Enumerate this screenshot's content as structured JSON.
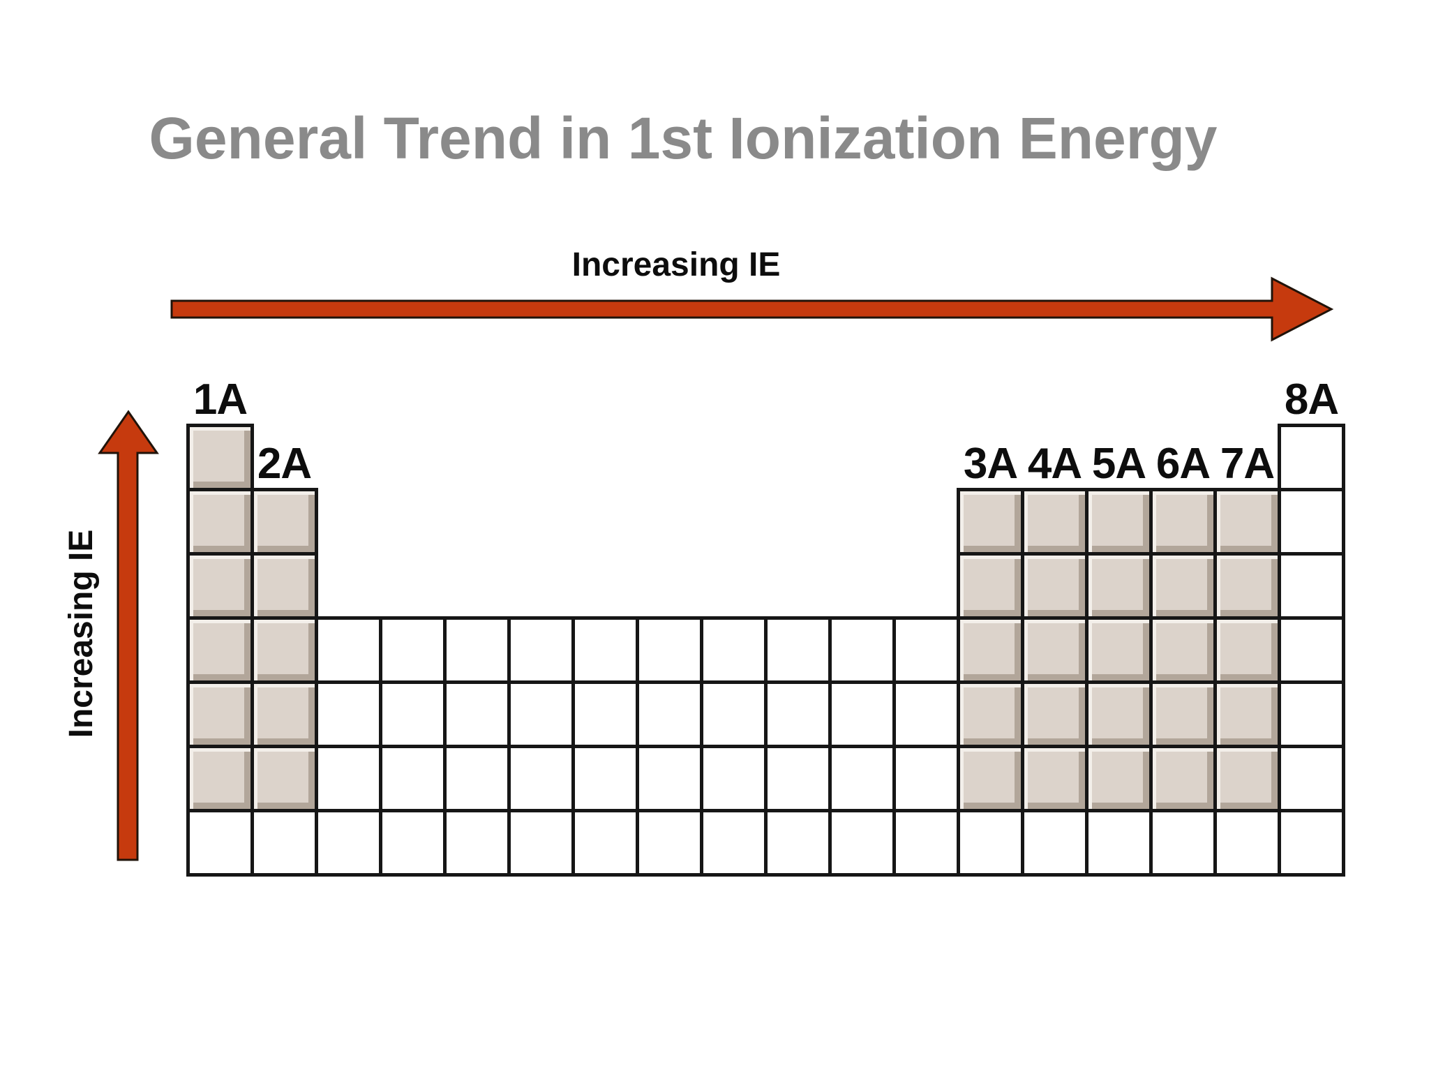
{
  "title": {
    "text": "General Trend in 1st Ionization Energy",
    "color": "#8a8a8a"
  },
  "arrows": {
    "fill": "#c63a0e",
    "outline": "#20130a",
    "horizontal": {
      "label": "Increasing IE",
      "direction": "right"
    },
    "vertical": {
      "label": "Increasing IE",
      "direction": "up"
    }
  },
  "grid": {
    "rows": 7,
    "cell_border_color": "#161616",
    "shaded_fill": "#dcd3cb",
    "shaded_highlight": "#f3efea",
    "shaded_shadow": "#b2a69a",
    "unshaded_fill": "#ffffff",
    "group_label_color": "#0d0d0d",
    "columns": [
      {
        "group": "1A",
        "first_row": 1,
        "shaded_through_row": 6
      },
      {
        "group": "2A",
        "first_row": 2,
        "shaded_through_row": 6
      },
      {
        "group": "",
        "first_row": 4,
        "shaded_through_row": 0
      },
      {
        "group": "",
        "first_row": 4,
        "shaded_through_row": 0
      },
      {
        "group": "",
        "first_row": 4,
        "shaded_through_row": 0
      },
      {
        "group": "",
        "first_row": 4,
        "shaded_through_row": 0
      },
      {
        "group": "",
        "first_row": 4,
        "shaded_through_row": 0
      },
      {
        "group": "",
        "first_row": 4,
        "shaded_through_row": 0
      },
      {
        "group": "",
        "first_row": 4,
        "shaded_through_row": 0
      },
      {
        "group": "",
        "first_row": 4,
        "shaded_through_row": 0
      },
      {
        "group": "",
        "first_row": 4,
        "shaded_through_row": 0
      },
      {
        "group": "",
        "first_row": 4,
        "shaded_through_row": 0
      },
      {
        "group": "3A",
        "first_row": 2,
        "shaded_through_row": 6
      },
      {
        "group": "4A",
        "first_row": 2,
        "shaded_through_row": 6
      },
      {
        "group": "5A",
        "first_row": 2,
        "shaded_through_row": 6
      },
      {
        "group": "6A",
        "first_row": 2,
        "shaded_through_row": 6
      },
      {
        "group": "7A",
        "first_row": 2,
        "shaded_through_row": 6
      },
      {
        "group": "8A",
        "first_row": 1,
        "shaded_through_row": 0
      }
    ]
  }
}
